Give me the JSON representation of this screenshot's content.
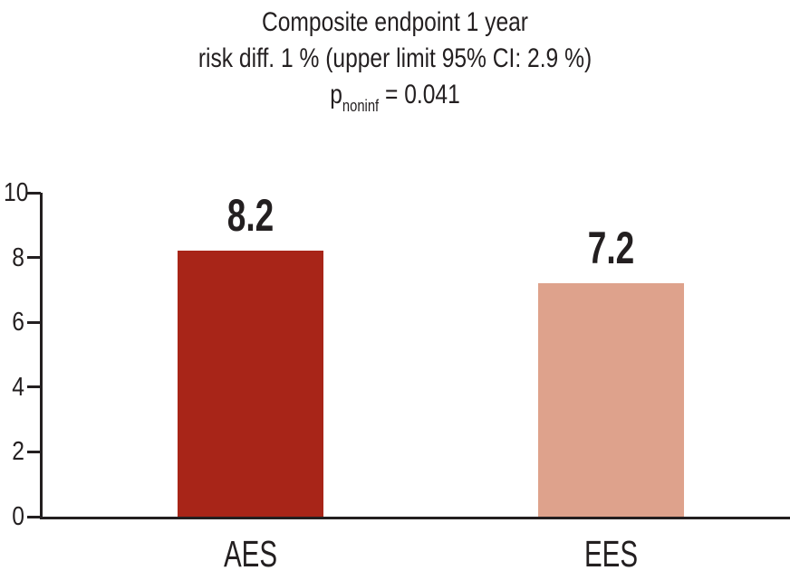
{
  "chart_data": {
    "type": "bar",
    "title_lines": [
      "Composite endpoint 1 year",
      "risk diff. 1 % (upper limit 95% CI: 2.9 %)"
    ],
    "p_annotation": {
      "prefix": "p",
      "subscript": "noninf",
      "rest": " = 0.041"
    },
    "categories": [
      "AES",
      "EES"
    ],
    "values": [
      8.2,
      7.2
    ],
    "value_labels": [
      "8.2",
      "7.2"
    ],
    "bar_colors": [
      "#A82518",
      "#DEA28C"
    ],
    "ylim": [
      0,
      10
    ],
    "yticks": [
      0,
      2,
      4,
      6,
      8,
      10
    ],
    "xlabel": "",
    "ylabel": "",
    "grid": false,
    "legend": "none",
    "axis_color": "#231F20",
    "text_color": "#231F20",
    "background": "#FFFFFF"
  }
}
